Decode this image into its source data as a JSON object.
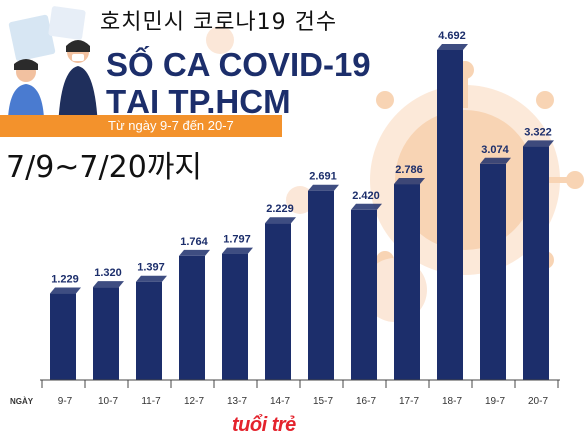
{
  "header": {
    "korean_title": "호치민시 코로나19 건수",
    "korean_range": "7/9~7/20까지",
    "title_line1": "SỐ CA COVID-19",
    "title_line2": "TẠI TP.HCM",
    "date_range": "Từ ngày 9-7 đến 20-7"
  },
  "logo": {
    "text": "tuổi trẻ"
  },
  "colors": {
    "bar": "#1c2e6b",
    "accent": "#f3922c",
    "virus": "#f6c59d",
    "axis": "#444444"
  },
  "chart_data": {
    "type": "bar",
    "xlabel": "NGÀY",
    "categories": [
      "9-7",
      "10-7",
      "11-7",
      "12-7",
      "13-7",
      "14-7",
      "15-7",
      "16-7",
      "17-7",
      "18-7",
      "19-7",
      "20-7"
    ],
    "values": [
      1229,
      1320,
      1397,
      1764,
      1797,
      2229,
      2691,
      2420,
      2786,
      4692,
      3074,
      3322
    ],
    "value_labels": [
      "1.229",
      "1.320",
      "1.397",
      "1.764",
      "1.797",
      "2.229",
      "2.691",
      "2.420",
      "2.786",
      "4.692",
      "3.074",
      "3.322"
    ],
    "ylim": [
      0,
      4692
    ],
    "grid": false,
    "legend": "none"
  }
}
